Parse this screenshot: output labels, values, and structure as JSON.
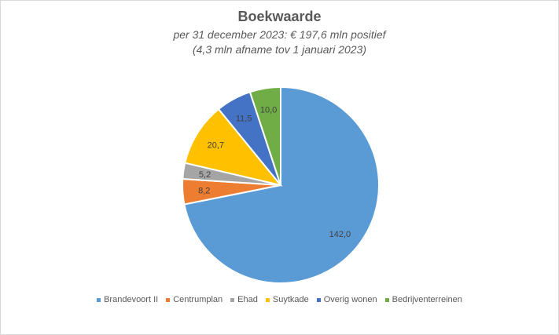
{
  "chart_data": {
    "type": "pie",
    "title": "Boekwaarde",
    "subtitle": [
      "per 31 december 2023: € 197,6 mln positief",
      "(4,3 mln afname tov 1 januari 2023)"
    ],
    "categories": [
      "Brandevoort II",
      "Centrumplan",
      "Ehad",
      "Suytkade",
      "Overig wonen",
      "Bedrijventerreinen"
    ],
    "values": [
      142.0,
      8.2,
      5.2,
      20.7,
      11.5,
      10.0
    ],
    "labels": [
      "142,0",
      "8,2",
      "5,2",
      "20,7",
      "11,5",
      "10,0"
    ],
    "colors": [
      "#5b9bd5",
      "#ed7d31",
      "#a5a5a5",
      "#ffc000",
      "#4472c4",
      "#70ad47"
    ],
    "legend_position": "bottom"
  }
}
